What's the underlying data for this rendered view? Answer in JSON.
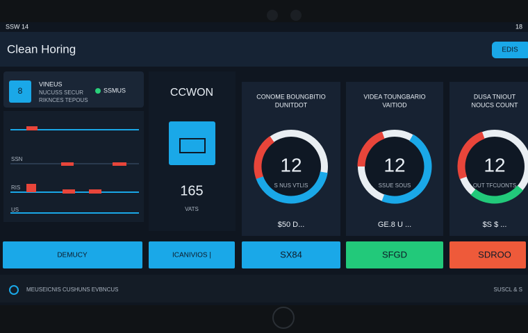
{
  "status": {
    "left": "SSW 14",
    "right": "18"
  },
  "header": {
    "title": "Clean Horing",
    "button": "EDIS"
  },
  "left_panel": {
    "card": {
      "icon": "8",
      "title": "VINEUS",
      "line1": "NUCUSS SECUR",
      "line2": "RIKNCES TEPOUS",
      "badge": "SSMUS"
    },
    "rows": [
      "SSN",
      "RIS",
      "US"
    ],
    "button": "DEMUCY"
  },
  "center": {
    "title": "CCWON",
    "number": "165",
    "unit": "VATS",
    "button": "ICANIVIOS |"
  },
  "cards": [
    {
      "title_line1": "CONOME BOUNGBITIO",
      "title_line2": "DUNITDOT",
      "value": "12",
      "caption": "S NUS VTLIS",
      "price": "$50 D...",
      "button": "SX84"
    },
    {
      "title_line1": "VIDEA TOUNGBARIO",
      "title_line2": "VAITIOD",
      "value": "12",
      "caption": "SSUE SOUS",
      "price": "GE.8 U ...",
      "button": "SFGD"
    },
    {
      "title_line1": "DUSA TNIOUT",
      "title_line2": "NOUCS COUNT",
      "value": "12",
      "caption": "OUT TFCUONTS",
      "price": "$S $ ...",
      "button": "SDROO"
    }
  ],
  "footer": {
    "left": "MEUSEICNIS CUSHUNS EVBNCUS",
    "right": "SUSCL & S"
  }
}
